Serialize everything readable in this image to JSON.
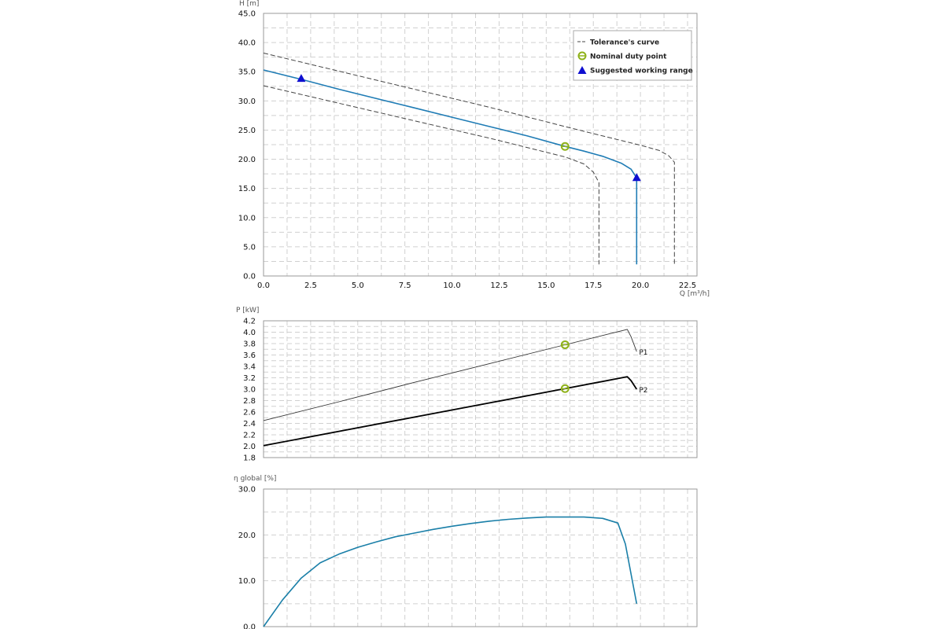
{
  "colors": {
    "head_curve": "#1f7cb5",
    "tolerance": "#444444",
    "duty_point": "#8fb21a",
    "working_range": "#0f0fd0",
    "p1": "#333333",
    "p2": "#000000",
    "efficiency": "#1a7fa8",
    "grid": "#d0d0d0",
    "frame": "#9a9a9a"
  },
  "chart_data": [
    {
      "type": "line",
      "ylabel": "H [m]",
      "xlabel": "Q [m³/h]",
      "xlim": [
        0,
        23
      ],
      "ylim": [
        0,
        45
      ],
      "x_ticks": [
        "0.0",
        "2.5",
        "5.0",
        "7.5",
        "10.0",
        "12.5",
        "15.0",
        "17.5",
        "20.0",
        "22.5"
      ],
      "x_tick_values": [
        0,
        2.5,
        5,
        7.5,
        10,
        12.5,
        15,
        17.5,
        20,
        22.5
      ],
      "y_ticks": [
        "0.0",
        "5.0",
        "10.0",
        "15.0",
        "20.0",
        "25.0",
        "30.0",
        "35.0",
        "40.0",
        "45.0"
      ],
      "y_tick_values": [
        0,
        5,
        10,
        15,
        20,
        25,
        30,
        35,
        40,
        45
      ],
      "grid": true,
      "legend_position": "top-right",
      "legend": [
        {
          "label": "Tolerance's curve",
          "marker": "dashed-line"
        },
        {
          "label": "Nominal duty point",
          "marker": "circle"
        },
        {
          "label": "Suggested working range",
          "marker": "triangle"
        }
      ],
      "series": [
        {
          "role": "head",
          "x": [
            0,
            2,
            4,
            6,
            8,
            10,
            12,
            14,
            16,
            17,
            18,
            19,
            19.5,
            19.8,
            19.8
          ],
          "y": [
            35.3,
            33.7,
            32.0,
            30.4,
            28.8,
            27.2,
            25.6,
            24.0,
            22.2,
            21.4,
            20.5,
            19.3,
            18.3,
            16.8,
            2.0
          ]
        },
        {
          "role": "tolerance-upper",
          "x": [
            0,
            4,
            8,
            12,
            16,
            18,
            20,
            21,
            21.5,
            21.8,
            21.8
          ],
          "y": [
            38.2,
            35.1,
            32.0,
            28.9,
            25.6,
            24.0,
            22.4,
            21.5,
            20.6,
            19.5,
            2.0
          ]
        },
        {
          "role": "tolerance-lower",
          "x": [
            0,
            4,
            8,
            12,
            16,
            17,
            17.5,
            17.8,
            17.8
          ],
          "y": [
            32.6,
            29.6,
            26.6,
            23.6,
            20.4,
            19.2,
            17.8,
            16.0,
            2.0
          ]
        }
      ],
      "duty_point": {
        "x": 16.0,
        "y": 22.2
      },
      "working_range": [
        {
          "x": 2.0,
          "y": 33.8
        },
        {
          "x": 19.8,
          "y": 16.8
        }
      ]
    },
    {
      "type": "line",
      "ylabel": "P [kW]",
      "xlim": [
        0,
        23
      ],
      "ylim": [
        1.8,
        4.2
      ],
      "x_tick_values": [
        0,
        2.5,
        5,
        7.5,
        10,
        12.5,
        15,
        17.5,
        20,
        22.5
      ],
      "y_ticks": [
        "1.8",
        "2.0",
        "2.2",
        "2.4",
        "2.6",
        "2.8",
        "3.0",
        "3.2",
        "3.4",
        "3.6",
        "3.8",
        "4.0",
        "4.2"
      ],
      "y_tick_values": [
        1.8,
        2.0,
        2.2,
        2.4,
        2.6,
        2.8,
        3.0,
        3.2,
        3.4,
        3.6,
        3.8,
        4.0,
        4.2
      ],
      "grid": true,
      "series": [
        {
          "name": "P1",
          "x": [
            0,
            4,
            8,
            12,
            16,
            19.3,
            19.5,
            19.8
          ],
          "y": [
            2.45,
            2.78,
            3.12,
            3.45,
            3.78,
            4.05,
            3.92,
            3.66
          ]
        },
        {
          "name": "P2",
          "x": [
            0,
            4,
            8,
            12,
            16,
            19.3,
            19.5,
            19.8
          ],
          "y": [
            2.01,
            2.26,
            2.51,
            2.76,
            3.01,
            3.22,
            3.15,
            3.0
          ]
        }
      ],
      "duty_points": [
        {
          "x": 16.0,
          "y": 3.78
        },
        {
          "x": 16.0,
          "y": 3.01
        }
      ]
    },
    {
      "type": "line",
      "ylabel": "η global [%]",
      "xlim": [
        0,
        23
      ],
      "ylim": [
        0,
        30
      ],
      "x_tick_values": [
        0,
        2.5,
        5,
        7.5,
        10,
        12.5,
        15,
        17.5,
        20,
        22.5
      ],
      "y_ticks": [
        "0.0",
        "10.0",
        "20.0",
        "30.0"
      ],
      "y_tick_values": [
        0,
        10,
        20,
        30
      ],
      "grid": true,
      "series": [
        {
          "role": "efficiency",
          "x": [
            0,
            1,
            2,
            3,
            4,
            5,
            6,
            7,
            8,
            9,
            10,
            11,
            12,
            13,
            14,
            15,
            16,
            17,
            18,
            18.8,
            19.2,
            19.8
          ],
          "y": [
            0,
            5.8,
            10.6,
            13.9,
            15.8,
            17.3,
            18.5,
            19.6,
            20.4,
            21.2,
            21.9,
            22.5,
            23.0,
            23.4,
            23.7,
            23.9,
            23.9,
            23.9,
            23.6,
            22.6,
            18.0,
            5.0
          ]
        }
      ]
    }
  ]
}
